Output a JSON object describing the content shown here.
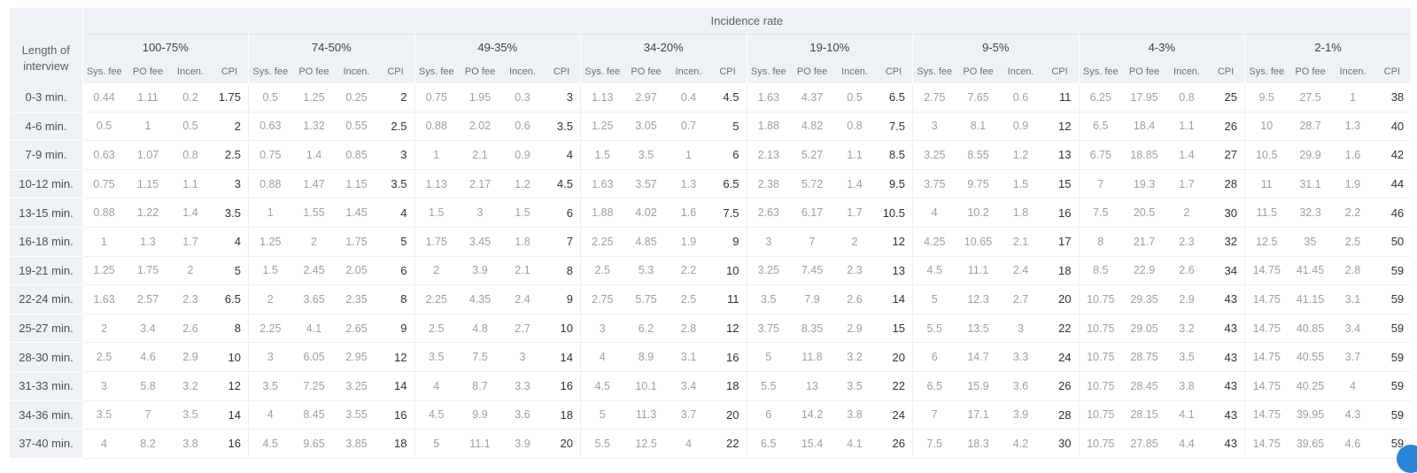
{
  "table": {
    "incidence_label": "Incidence rate",
    "length_label": "Length of interview",
    "bands": [
      "100-75%",
      "74-50%",
      "49-35%",
      "34-20%",
      "19-10%",
      "9-5%",
      "4-3%",
      "2-1%"
    ],
    "subcolumns": [
      "Sys. fee",
      "PO fee",
      "Incen.",
      "CPI"
    ],
    "rows": [
      {
        "length": "0-3 min.",
        "cells": [
          [
            "0.44",
            "1.11",
            "0.2",
            "1.75"
          ],
          [
            "0.5",
            "1.25",
            "0.25",
            "2"
          ],
          [
            "0.75",
            "1.95",
            "0.3",
            "3"
          ],
          [
            "1.13",
            "2.97",
            "0.4",
            "4.5"
          ],
          [
            "1.63",
            "4.37",
            "0.5",
            "6.5"
          ],
          [
            "2.75",
            "7.65",
            "0.6",
            "11"
          ],
          [
            "6.25",
            "17.95",
            "0.8",
            "25"
          ],
          [
            "9.5",
            "27.5",
            "1",
            "38"
          ]
        ]
      },
      {
        "length": "4-6 min.",
        "cells": [
          [
            "0.5",
            "1",
            "0.5",
            "2"
          ],
          [
            "0.63",
            "1.32",
            "0.55",
            "2.5"
          ],
          [
            "0.88",
            "2.02",
            "0.6",
            "3.5"
          ],
          [
            "1.25",
            "3.05",
            "0.7",
            "5"
          ],
          [
            "1.88",
            "4.82",
            "0.8",
            "7.5"
          ],
          [
            "3",
            "8.1",
            "0.9",
            "12"
          ],
          [
            "6.5",
            "18.4",
            "1.1",
            "26"
          ],
          [
            "10",
            "28.7",
            "1.3",
            "40"
          ]
        ]
      },
      {
        "length": "7-9 min.",
        "cells": [
          [
            "0.63",
            "1.07",
            "0.8",
            "2.5"
          ],
          [
            "0.75",
            "1.4",
            "0.85",
            "3"
          ],
          [
            "1",
            "2.1",
            "0.9",
            "4"
          ],
          [
            "1.5",
            "3.5",
            "1",
            "6"
          ],
          [
            "2.13",
            "5.27",
            "1.1",
            "8.5"
          ],
          [
            "3.25",
            "8.55",
            "1.2",
            "13"
          ],
          [
            "6.75",
            "18.85",
            "1.4",
            "27"
          ],
          [
            "10.5",
            "29.9",
            "1.6",
            "42"
          ]
        ]
      },
      {
        "length": "10-12 min.",
        "cells": [
          [
            "0.75",
            "1.15",
            "1.1",
            "3"
          ],
          [
            "0.88",
            "1.47",
            "1.15",
            "3.5"
          ],
          [
            "1.13",
            "2.17",
            "1.2",
            "4.5"
          ],
          [
            "1.63",
            "3.57",
            "1.3",
            "6.5"
          ],
          [
            "2.38",
            "5.72",
            "1.4",
            "9.5"
          ],
          [
            "3.75",
            "9.75",
            "1.5",
            "15"
          ],
          [
            "7",
            "19.3",
            "1.7",
            "28"
          ],
          [
            "11",
            "31.1",
            "1.9",
            "44"
          ]
        ]
      },
      {
        "length": "13-15 min.",
        "cells": [
          [
            "0.88",
            "1.22",
            "1.4",
            "3.5"
          ],
          [
            "1",
            "1.55",
            "1.45",
            "4"
          ],
          [
            "1.5",
            "3",
            "1.5",
            "6"
          ],
          [
            "1.88",
            "4.02",
            "1.6",
            "7.5"
          ],
          [
            "2.63",
            "6.17",
            "1.7",
            "10.5"
          ],
          [
            "4",
            "10.2",
            "1.8",
            "16"
          ],
          [
            "7.5",
            "20.5",
            "2",
            "30"
          ],
          [
            "11.5",
            "32.3",
            "2.2",
            "46"
          ]
        ]
      },
      {
        "length": "16-18 min.",
        "cells": [
          [
            "1",
            "1.3",
            "1.7",
            "4"
          ],
          [
            "1.25",
            "2",
            "1.75",
            "5"
          ],
          [
            "1.75",
            "3.45",
            "1.8",
            "7"
          ],
          [
            "2.25",
            "4.85",
            "1.9",
            "9"
          ],
          [
            "3",
            "7",
            "2",
            "12"
          ],
          [
            "4.25",
            "10.65",
            "2.1",
            "17"
          ],
          [
            "8",
            "21.7",
            "2.3",
            "32"
          ],
          [
            "12.5",
            "35",
            "2.5",
            "50"
          ]
        ]
      },
      {
        "length": "19-21 min.",
        "cells": [
          [
            "1.25",
            "1.75",
            "2",
            "5"
          ],
          [
            "1.5",
            "2.45",
            "2.05",
            "6"
          ],
          [
            "2",
            "3.9",
            "2.1",
            "8"
          ],
          [
            "2.5",
            "5.3",
            "2.2",
            "10"
          ],
          [
            "3.25",
            "7.45",
            "2.3",
            "13"
          ],
          [
            "4.5",
            "11.1",
            "2.4",
            "18"
          ],
          [
            "8.5",
            "22.9",
            "2.6",
            "34"
          ],
          [
            "14.75",
            "41.45",
            "2.8",
            "59"
          ]
        ]
      },
      {
        "length": "22-24 min.",
        "cells": [
          [
            "1.63",
            "2.57",
            "2.3",
            "6.5"
          ],
          [
            "2",
            "3.65",
            "2.35",
            "8"
          ],
          [
            "2.25",
            "4.35",
            "2.4",
            "9"
          ],
          [
            "2.75",
            "5.75",
            "2.5",
            "11"
          ],
          [
            "3.5",
            "7.9",
            "2.6",
            "14"
          ],
          [
            "5",
            "12.3",
            "2.7",
            "20"
          ],
          [
            "10.75",
            "29.35",
            "2.9",
            "43"
          ],
          [
            "14.75",
            "41.15",
            "3.1",
            "59"
          ]
        ]
      },
      {
        "length": "25-27 min.",
        "cells": [
          [
            "2",
            "3.4",
            "2.6",
            "8"
          ],
          [
            "2.25",
            "4.1",
            "2.65",
            "9"
          ],
          [
            "2.5",
            "4.8",
            "2.7",
            "10"
          ],
          [
            "3",
            "6.2",
            "2.8",
            "12"
          ],
          [
            "3.75",
            "8.35",
            "2.9",
            "15"
          ],
          [
            "5.5",
            "13.5",
            "3",
            "22"
          ],
          [
            "10.75",
            "29.05",
            "3.2",
            "43"
          ],
          [
            "14.75",
            "40.85",
            "3.4",
            "59"
          ]
        ]
      },
      {
        "length": "28-30 min.",
        "cells": [
          [
            "2.5",
            "4.6",
            "2.9",
            "10"
          ],
          [
            "3",
            "6.05",
            "2.95",
            "12"
          ],
          [
            "3.5",
            "7.5",
            "3",
            "14"
          ],
          [
            "4",
            "8.9",
            "3.1",
            "16"
          ],
          [
            "5",
            "11.8",
            "3.2",
            "20"
          ],
          [
            "6",
            "14.7",
            "3.3",
            "24"
          ],
          [
            "10.75",
            "28.75",
            "3.5",
            "43"
          ],
          [
            "14.75",
            "40.55",
            "3.7",
            "59"
          ]
        ]
      },
      {
        "length": "31-33 min.",
        "cells": [
          [
            "3",
            "5.8",
            "3.2",
            "12"
          ],
          [
            "3.5",
            "7.25",
            "3.25",
            "14"
          ],
          [
            "4",
            "8.7",
            "3.3",
            "16"
          ],
          [
            "4.5",
            "10.1",
            "3.4",
            "18"
          ],
          [
            "5.5",
            "13",
            "3.5",
            "22"
          ],
          [
            "6.5",
            "15.9",
            "3.6",
            "26"
          ],
          [
            "10.75",
            "28.45",
            "3.8",
            "43"
          ],
          [
            "14.75",
            "40.25",
            "4",
            "59"
          ]
        ]
      },
      {
        "length": "34-36 min.",
        "cells": [
          [
            "3.5",
            "7",
            "3.5",
            "14"
          ],
          [
            "4",
            "8.45",
            "3.55",
            "16"
          ],
          [
            "4.5",
            "9.9",
            "3.6",
            "18"
          ],
          [
            "5",
            "11.3",
            "3.7",
            "20"
          ],
          [
            "6",
            "14.2",
            "3.8",
            "24"
          ],
          [
            "7",
            "17.1",
            "3.9",
            "28"
          ],
          [
            "10.75",
            "28.15",
            "4.1",
            "43"
          ],
          [
            "14.75",
            "39.95",
            "4.3",
            "59"
          ]
        ]
      },
      {
        "length": "37-40 min.",
        "cells": [
          [
            "4",
            "8.2",
            "3.8",
            "16"
          ],
          [
            "4.5",
            "9.65",
            "3.85",
            "18"
          ],
          [
            "5",
            "11.1",
            "3.9",
            "20"
          ],
          [
            "5.5",
            "12.5",
            "4",
            "22"
          ],
          [
            "6.5",
            "15.4",
            "4.1",
            "26"
          ],
          [
            "7.5",
            "18.3",
            "4.2",
            "30"
          ],
          [
            "10.75",
            "27.85",
            "4.4",
            "43"
          ],
          [
            "14.75",
            "39.65",
            "4.6",
            "59"
          ]
        ]
      }
    ]
  },
  "colors": {
    "header_bg": "#eef1f5",
    "muted_text": "#9a9fa8",
    "cpi_text": "#2e333a",
    "badge": "#2a86d6"
  }
}
